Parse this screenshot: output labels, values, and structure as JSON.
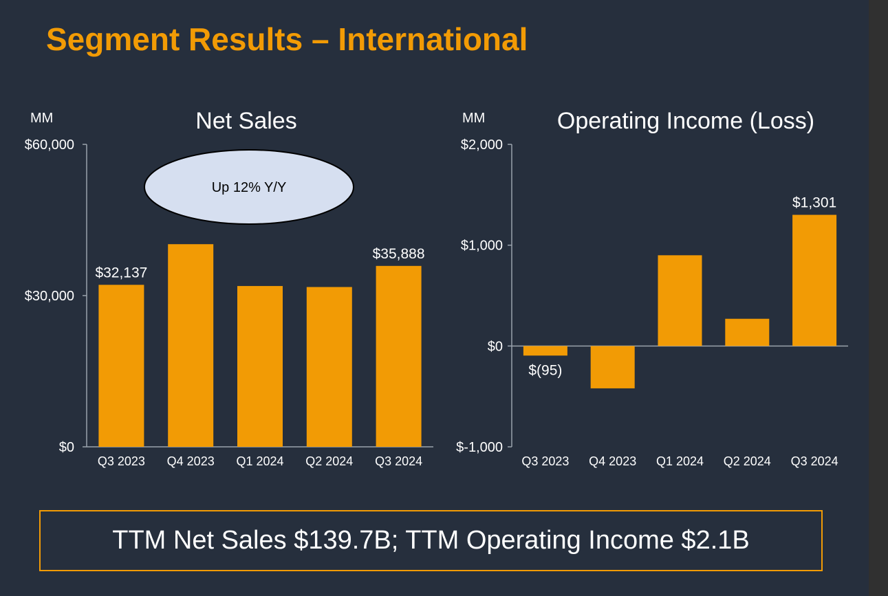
{
  "slide": {
    "title": "Segment Results – International",
    "footer_text": "TTM Net Sales $139.7B; TTM Operating Income $2.1B"
  },
  "colors": {
    "background": "#262f3d",
    "accent": "#f29b05",
    "bar": "#f29b05",
    "text": "#ffffff",
    "callout_fill": "#d6dff0"
  },
  "chart_data": [
    {
      "type": "bar",
      "title": "Net Sales",
      "unit_label": "MM",
      "categories": [
        "Q3 2023",
        "Q4 2023",
        "Q1 2024",
        "Q2 2024",
        "Q3 2024"
      ],
      "values": [
        32137,
        40200,
        31900,
        31700,
        35888
      ],
      "data_labels": [
        "$32,137",
        "",
        "",
        "",
        "$35,888"
      ],
      "ylim": [
        0,
        60000
      ],
      "yticks": [
        0,
        30000,
        60000
      ],
      "ytick_labels": [
        "$0",
        "$30,000",
        "$60,000"
      ],
      "annotation": "Up 12% Y/Y",
      "grid": false
    },
    {
      "type": "bar",
      "title": "Operating Income (Loss)",
      "unit_label": "MM",
      "categories": [
        "Q3 2023",
        "Q4 2023",
        "Q1 2024",
        "Q2 2024",
        "Q3 2024"
      ],
      "values": [
        -95,
        -420,
        900,
        270,
        1301
      ],
      "data_labels": [
        "$(95)",
        "",
        "",
        "",
        "$1,301"
      ],
      "ylim": [
        -1000,
        2000
      ],
      "yticks": [
        -1000,
        0,
        1000,
        2000
      ],
      "ytick_labels": [
        "$-1,000",
        "$0",
        "$1,000",
        "$2,000"
      ],
      "grid": false
    }
  ]
}
